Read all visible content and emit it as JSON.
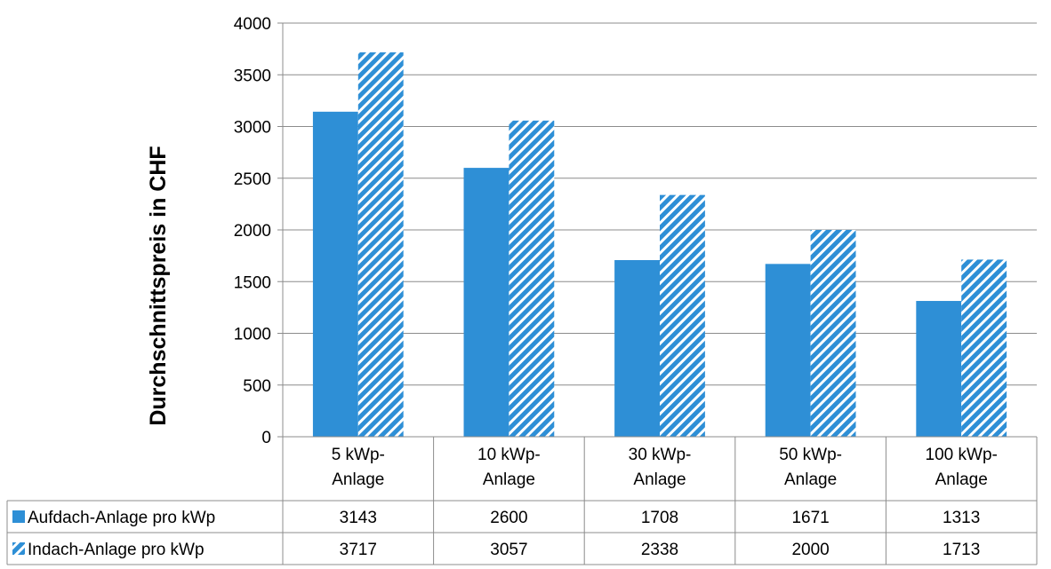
{
  "chart_data": {
    "type": "bar",
    "ylabel": "Durchschnittspreis in CHF",
    "ylim": [
      0,
      4000
    ],
    "yticks": [
      0,
      500,
      1000,
      1500,
      2000,
      2500,
      3000,
      3500,
      4000
    ],
    "grid": true,
    "categories": [
      [
        "5 kWp-",
        "Anlage"
      ],
      [
        "10 kWp-",
        "Anlage"
      ],
      [
        "30 kWp-",
        "Anlage"
      ],
      [
        "50 kWp-",
        "Anlage"
      ],
      [
        "100 kWp-",
        "Anlage"
      ]
    ],
    "series": [
      {
        "name": "Aufdach-Anlage pro kWp",
        "values": [
          3143,
          2600,
          1708,
          1671,
          1313
        ],
        "color": "#2e8fd6",
        "style": "solid"
      },
      {
        "name": "Indach-Anlage pro kWp",
        "values": [
          3717,
          3057,
          2338,
          2000,
          1713
        ],
        "color": "#2e8fd6",
        "style": "hatched"
      }
    ],
    "legend": "data-table"
  }
}
